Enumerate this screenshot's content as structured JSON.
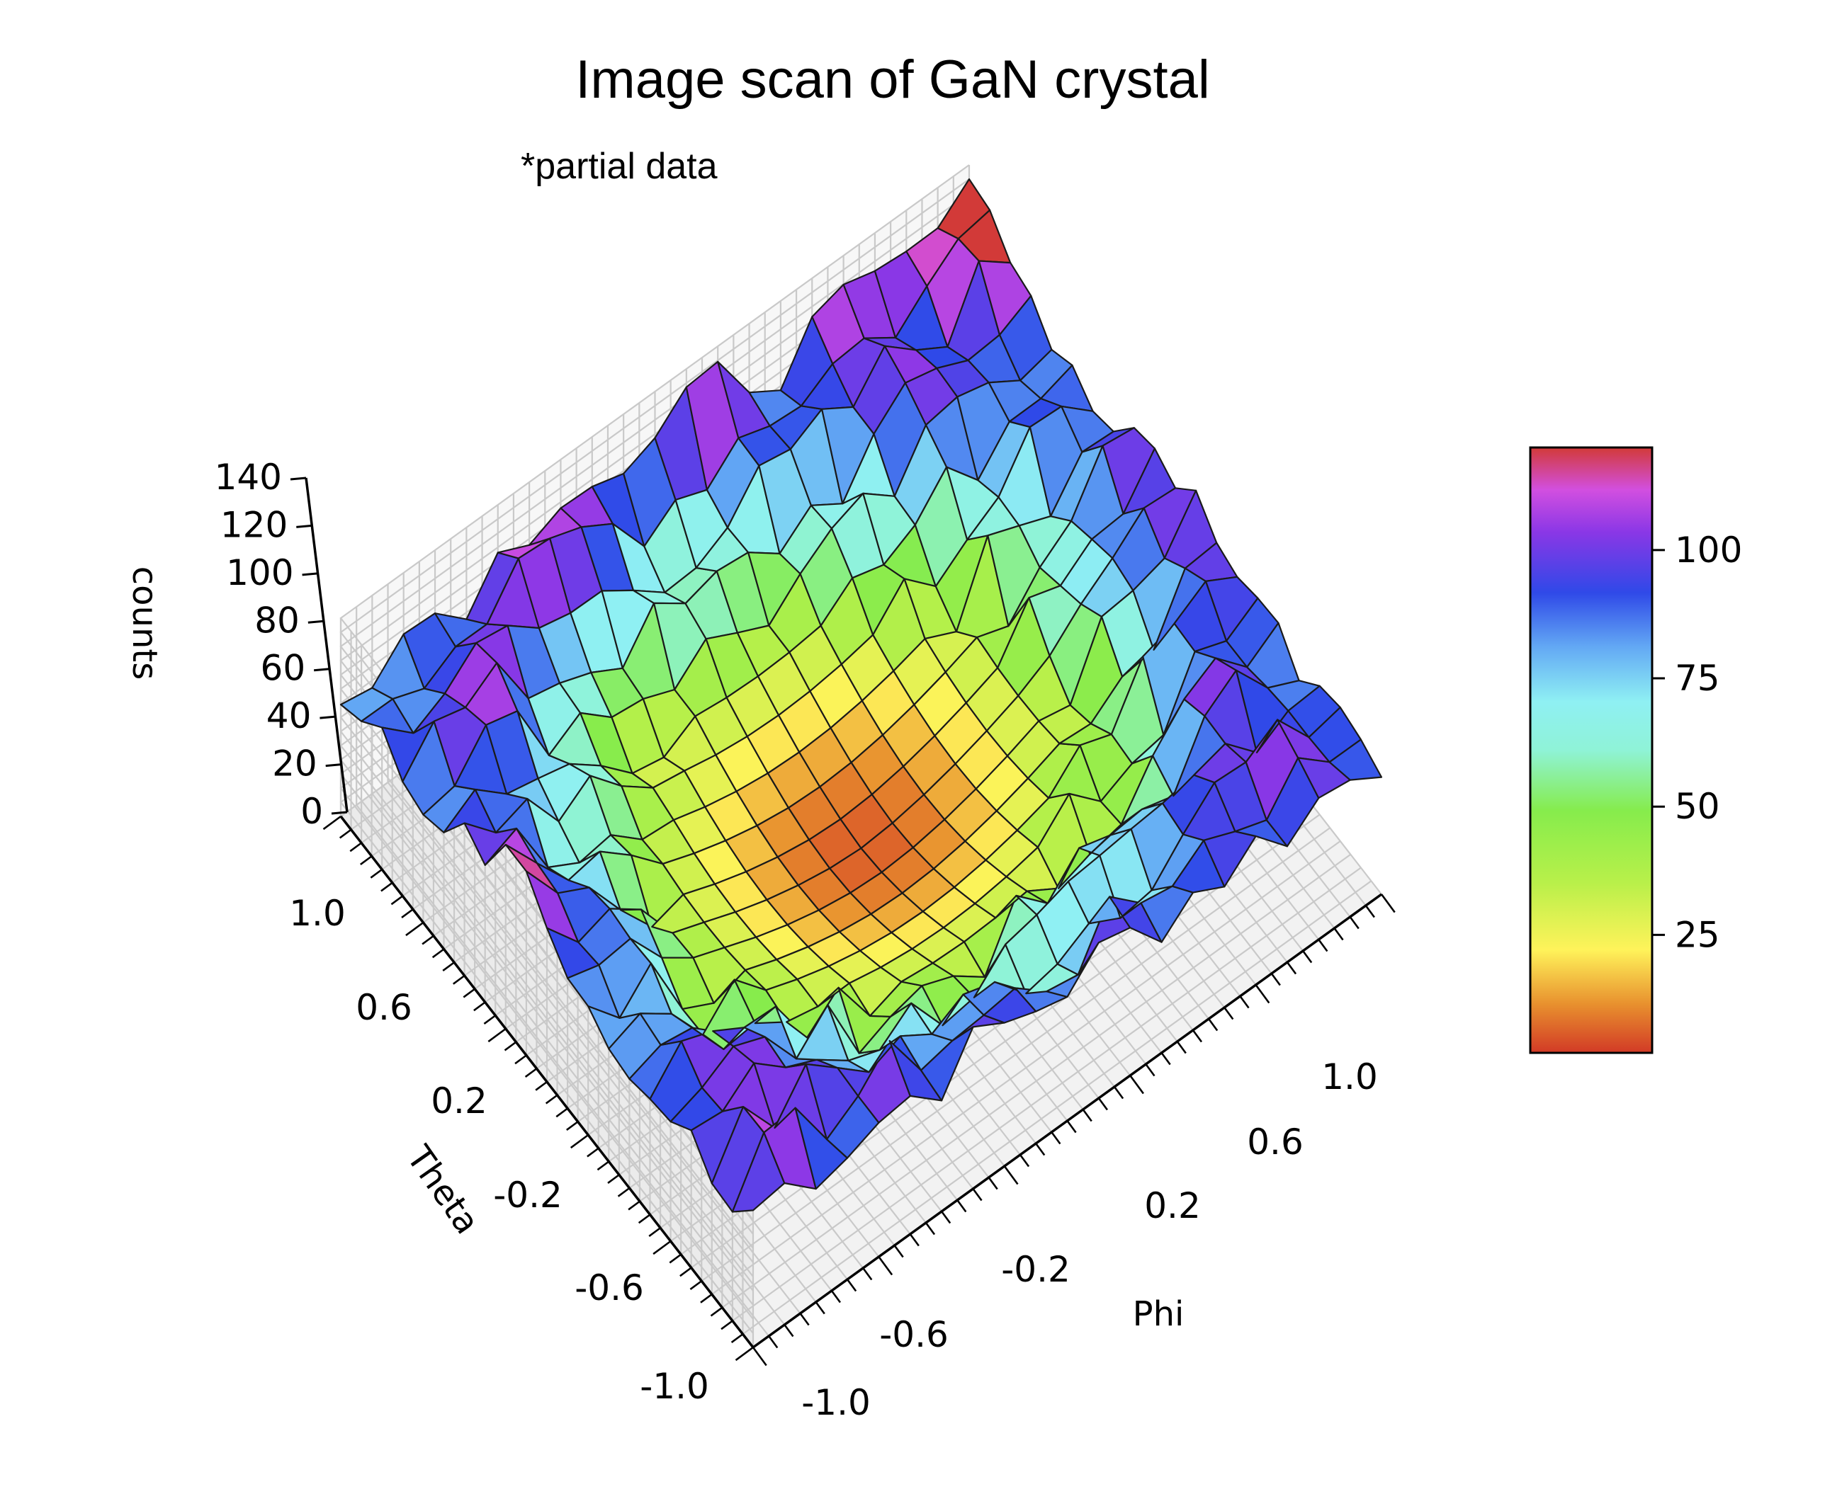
{
  "chart_data": {
    "type": "surface3d",
    "title": "Image scan of GaN crystal",
    "subtitle": "*partial data",
    "xlabel": "Phi",
    "ylabel": "Theta",
    "zlabel": "counts",
    "x_ticks": [
      "-1.0",
      "-0.6",
      "-0.2",
      "0.2",
      "0.6",
      "1.0"
    ],
    "y_ticks": [
      "-1.0",
      "-0.6",
      "-0.2",
      "0.2",
      "0.6",
      "1.0"
    ],
    "z_ticks": [
      "0",
      "20",
      "40",
      "60",
      "80",
      "100",
      "120",
      "140"
    ],
    "xlim": [
      -1.0,
      1.0
    ],
    "ylim": [
      -1.0,
      1.0
    ],
    "zlim": [
      0,
      140
    ],
    "grid": true,
    "colormap": "gist_rainbow (red low to magenta high)",
    "colorbar": {
      "ticks": [
        "25",
        "50",
        "75",
        "100"
      ],
      "range": [
        2,
        120
      ]
    },
    "surface": {
      "description_model": "counts approx 2 + 0.78*(phi^2+theta^2)^... rising from ~5 at center to ~100-120 at edges with random spikes",
      "grid_size": 20,
      "center_value": 5,
      "edge_value": 95,
      "peaks": [
        {
          "phi": -1.0,
          "theta": 0.2,
          "counts": 120
        },
        {
          "phi": -0.3,
          "theta": 1.0,
          "counts": 122
        },
        {
          "phi": 0.2,
          "theta": 1.0,
          "counts": 110
        },
        {
          "phi": 1.0,
          "theta": 0.9,
          "counts": 125
        },
        {
          "phi": 0.9,
          "theta": -0.3,
          "counts": 105
        }
      ]
    }
  }
}
